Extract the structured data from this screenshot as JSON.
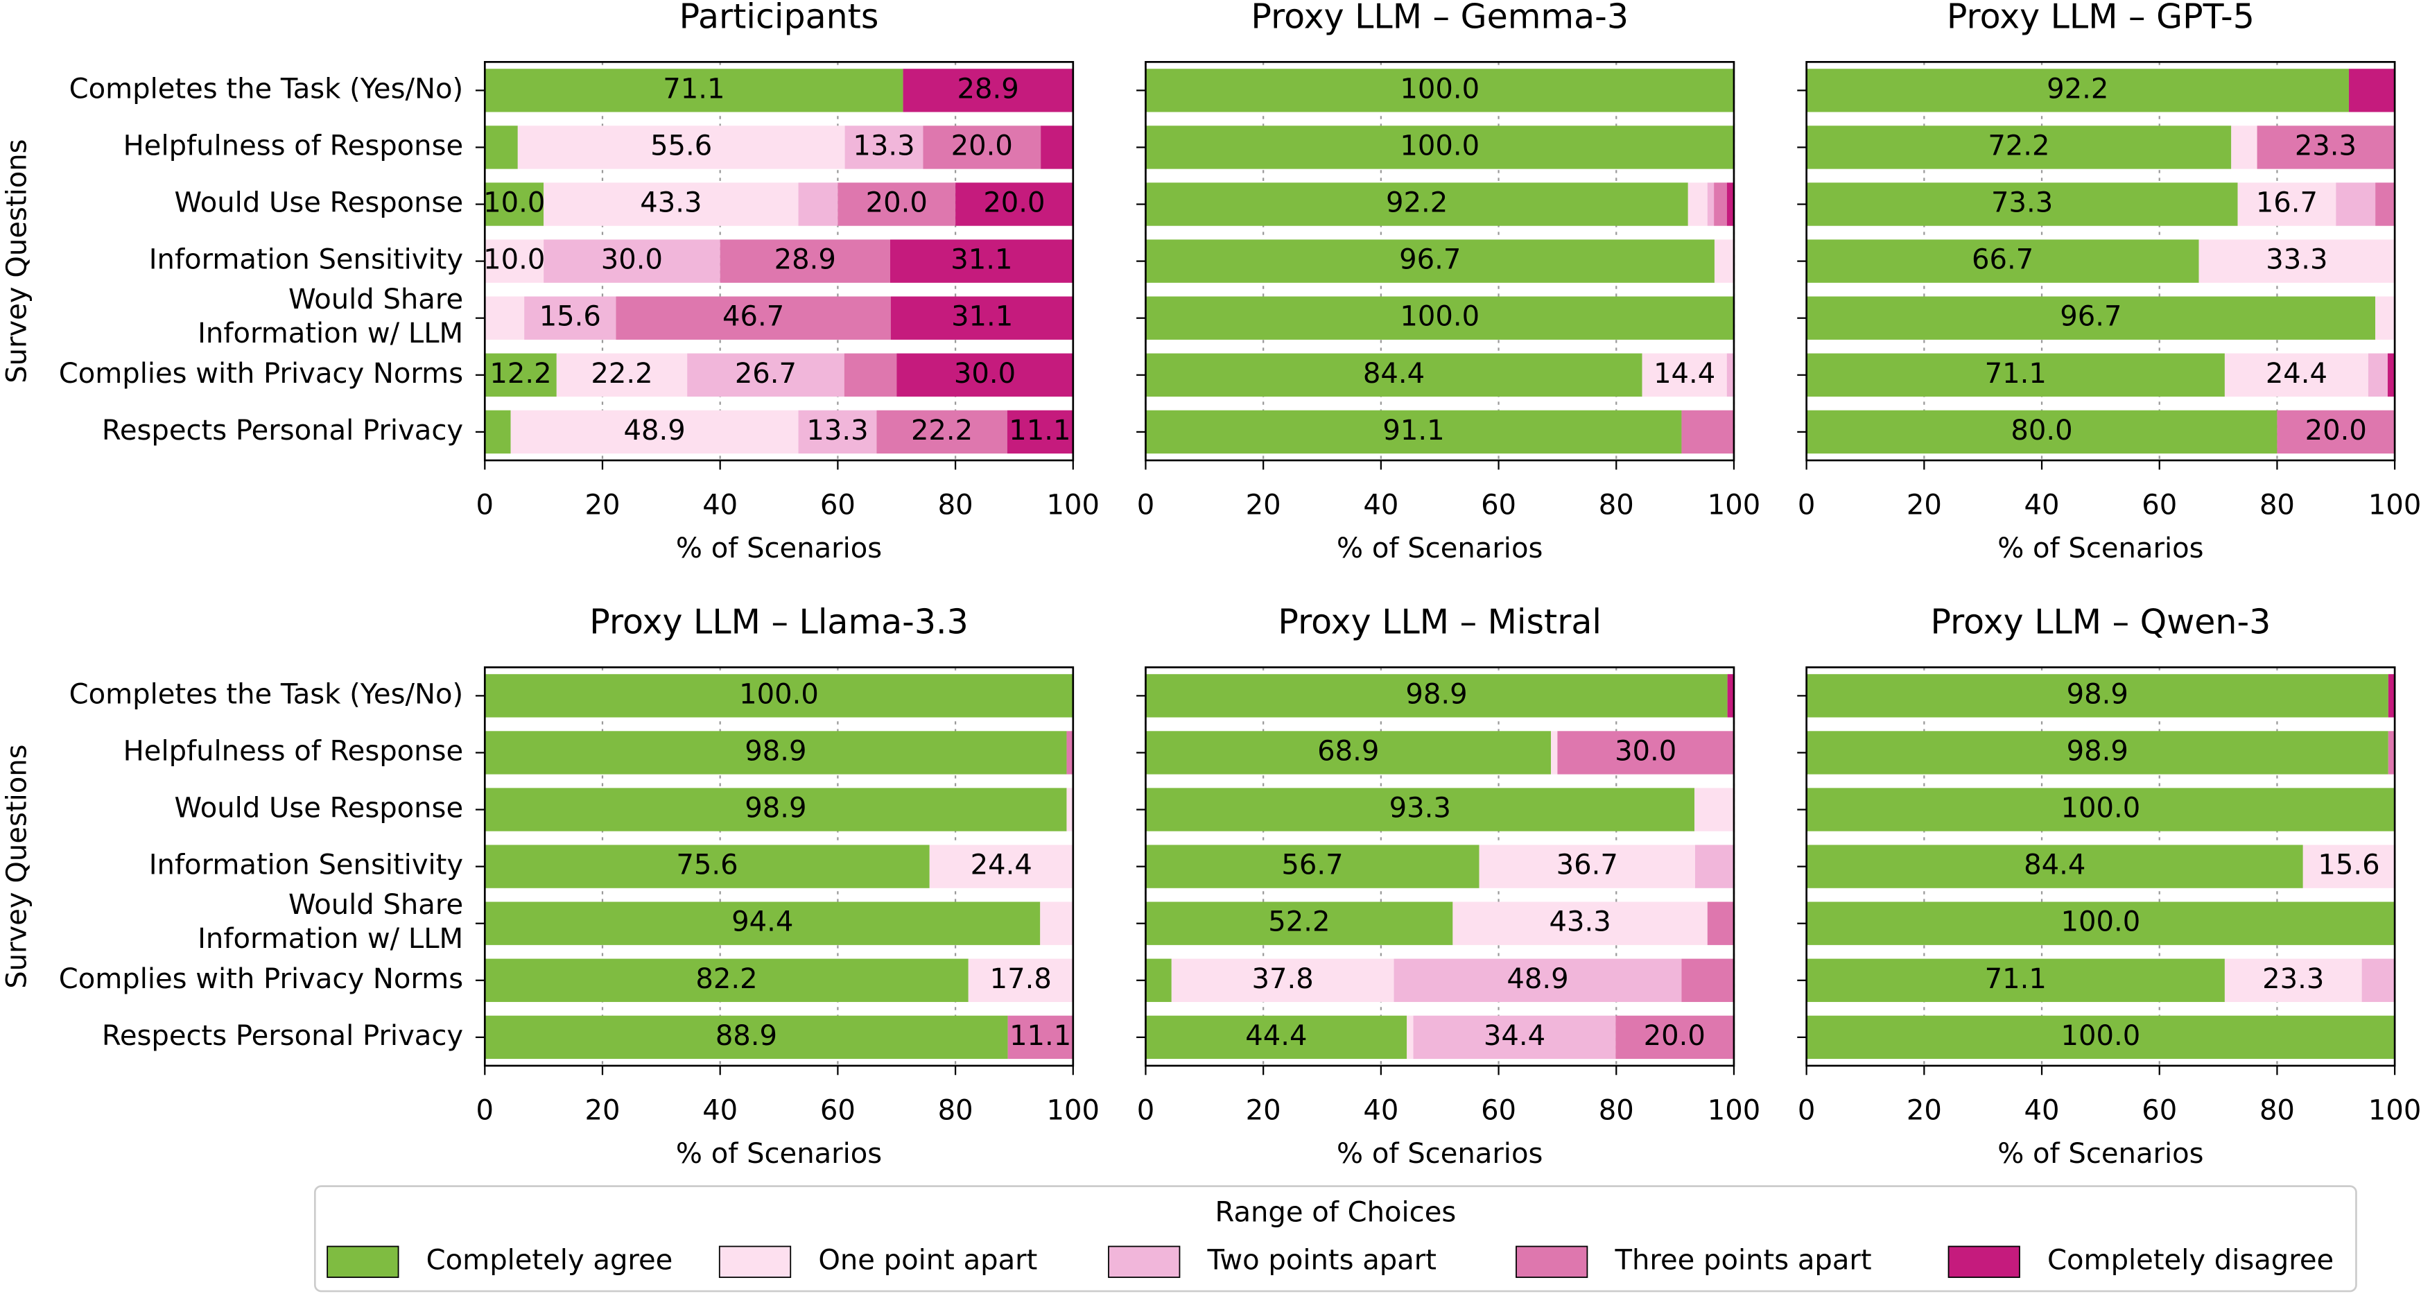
{
  "legend": {
    "title": "Range of Choices",
    "position": "bottom"
  },
  "chart_data": [
    {
      "type": "bar",
      "orientation": "horizontal",
      "stacked": true,
      "title": "Participants",
      "xlabel": "% of Scenarios",
      "ylabel": "Survey Questions",
      "categories": [
        "Completes the Task (Yes/No)",
        "Helpfulness of Response",
        "Would Use Response",
        "Information Sensitivity",
        "Would Share\nInformation w/ LLM",
        "Complies with Privacy Norms",
        "Respects Personal Privacy"
      ],
      "xlim": [
        0,
        100
      ],
      "xticks": [
        0,
        20,
        40,
        60,
        80,
        100
      ],
      "grid": true,
      "series": [
        {
          "name": "Completely agree",
          "color": "#7fbc41",
          "values": [
            71.1,
            5.6,
            10.0,
            0,
            0,
            12.2,
            4.4
          ],
          "value_labels": [
            "71.1",
            null,
            "10.0",
            null,
            null,
            "12.2",
            null
          ]
        },
        {
          "name": "One point apart",
          "color": "#fde0ef",
          "values": [
            0,
            55.6,
            43.3,
            10.0,
            6.7,
            22.2,
            48.9
          ],
          "value_labels": [
            null,
            "55.6",
            "43.3",
            "10.0",
            null,
            "22.2",
            "48.9"
          ]
        },
        {
          "name": "Two points apart",
          "color": "#f1b6da",
          "values": [
            0,
            13.3,
            6.7,
            30.0,
            15.6,
            26.7,
            13.3
          ],
          "value_labels": [
            null,
            "13.3",
            null,
            "30.0",
            "15.6",
            "26.7",
            "13.3"
          ]
        },
        {
          "name": "Three points apart",
          "color": "#de77ae",
          "values": [
            0,
            20.0,
            20.0,
            28.9,
            46.7,
            8.9,
            22.2
          ],
          "value_labels": [
            null,
            "20.0",
            "20.0",
            "28.9",
            "46.7",
            null,
            "22.2"
          ]
        },
        {
          "name": "Completely disagree",
          "color": "#c51b7d",
          "values": [
            28.9,
            5.6,
            20.0,
            31.1,
            31.1,
            30.0,
            11.1
          ],
          "value_labels": [
            "28.9",
            null,
            "20.0",
            "31.1",
            "31.1",
            "30.0",
            "11.1"
          ]
        }
      ]
    },
    {
      "type": "bar",
      "orientation": "horizontal",
      "stacked": true,
      "title": "Proxy LLM – Gemma-3",
      "xlabel": "% of Scenarios",
      "categories": [
        null,
        null,
        null,
        null,
        null,
        null,
        null
      ],
      "xlim": [
        0,
        100
      ],
      "xticks": [
        0,
        20,
        40,
        60,
        80,
        100
      ],
      "grid": true,
      "series": [
        {
          "name": "Completely agree",
          "color": "#7fbc41",
          "values": [
            100,
            100,
            92.2,
            96.7,
            100,
            84.4,
            91.1
          ],
          "value_labels": [
            "100.0",
            "100.0",
            "92.2",
            "96.7",
            "100.0",
            "84.4",
            "91.1"
          ]
        },
        {
          "name": "One point apart",
          "color": "#fde0ef",
          "values": [
            0,
            0,
            3.3,
            3.3,
            0,
            14.4,
            0
          ],
          "value_labels": [
            null,
            null,
            null,
            null,
            null,
            "14.4",
            null
          ]
        },
        {
          "name": "Two points apart",
          "color": "#f1b6da",
          "values": [
            0,
            0,
            1.1,
            0,
            0,
            1.1,
            0
          ],
          "value_labels": [
            null,
            null,
            null,
            null,
            null,
            null,
            null
          ]
        },
        {
          "name": "Three points apart",
          "color": "#de77ae",
          "values": [
            0,
            0,
            2.2,
            0,
            0,
            0,
            8.9
          ],
          "value_labels": [
            null,
            null,
            null,
            null,
            null,
            null,
            null
          ]
        },
        {
          "name": "Completely disagree",
          "color": "#c51b7d",
          "values": [
            0,
            0,
            1.1,
            0,
            0,
            0,
            0
          ],
          "value_labels": [
            null,
            null,
            null,
            null,
            null,
            null,
            null
          ]
        }
      ]
    },
    {
      "type": "bar",
      "orientation": "horizontal",
      "stacked": true,
      "title": "Proxy LLM – GPT-5",
      "xlabel": "% of Scenarios",
      "categories": [
        null,
        null,
        null,
        null,
        null,
        null,
        null
      ],
      "xlim": [
        0,
        100
      ],
      "xticks": [
        0,
        20,
        40,
        60,
        80,
        100
      ],
      "grid": true,
      "series": [
        {
          "name": "Completely agree",
          "color": "#7fbc41",
          "values": [
            92.2,
            72.2,
            73.3,
            66.7,
            96.7,
            71.1,
            80.0
          ],
          "value_labels": [
            "92.2",
            "72.2",
            "73.3",
            "66.7",
            "96.7",
            "71.1",
            "80.0"
          ]
        },
        {
          "name": "One point apart",
          "color": "#fde0ef",
          "values": [
            0,
            4.4,
            16.7,
            33.3,
            3.3,
            24.4,
            0
          ],
          "value_labels": [
            null,
            null,
            "16.7",
            "33.3",
            null,
            "24.4",
            null
          ]
        },
        {
          "name": "Two points apart",
          "color": "#f1b6da",
          "values": [
            0,
            0,
            6.7,
            0,
            0,
            3.3,
            0
          ],
          "value_labels": [
            null,
            null,
            null,
            null,
            null,
            null,
            null
          ]
        },
        {
          "name": "Three points apart",
          "color": "#de77ae",
          "values": [
            0,
            23.3,
            3.3,
            0,
            0,
            0,
            20.0
          ],
          "value_labels": [
            null,
            "23.3",
            null,
            null,
            null,
            null,
            "20.0"
          ]
        },
        {
          "name": "Completely disagree",
          "color": "#c51b7d",
          "values": [
            7.8,
            0,
            0,
            0,
            0,
            1.1,
            0
          ],
          "value_labels": [
            null,
            null,
            null,
            null,
            null,
            null,
            null
          ]
        }
      ]
    },
    {
      "type": "bar",
      "orientation": "horizontal",
      "stacked": true,
      "title": "Proxy LLM – Llama-3.3",
      "xlabel": "% of Scenarios",
      "ylabel": "Survey Questions",
      "categories": [
        "Completes the Task (Yes/No)",
        "Helpfulness of Response",
        "Would Use Response",
        "Information Sensitivity",
        "Would Share\nInformation w/ LLM",
        "Complies with Privacy Norms",
        "Respects Personal Privacy"
      ],
      "xlim": [
        0,
        100
      ],
      "xticks": [
        0,
        20,
        40,
        60,
        80,
        100
      ],
      "grid": true,
      "series": [
        {
          "name": "Completely agree",
          "color": "#7fbc41",
          "values": [
            100,
            98.9,
            98.9,
            75.6,
            94.4,
            82.2,
            88.9
          ],
          "value_labels": [
            "100.0",
            "98.9",
            "98.9",
            "75.6",
            "94.4",
            "82.2",
            "88.9"
          ]
        },
        {
          "name": "One point apart",
          "color": "#fde0ef",
          "values": [
            0,
            0,
            1.1,
            24.4,
            5.6,
            17.8,
            0
          ],
          "value_labels": [
            null,
            null,
            null,
            "24.4",
            null,
            "17.8",
            null
          ]
        },
        {
          "name": "Two points apart",
          "color": "#f1b6da",
          "values": [
            0,
            0,
            0,
            0,
            0,
            0,
            0
          ],
          "value_labels": [
            null,
            null,
            null,
            null,
            null,
            null,
            null
          ]
        },
        {
          "name": "Three points apart",
          "color": "#de77ae",
          "values": [
            0,
            1.1,
            0,
            0,
            0,
            0,
            11.1
          ],
          "value_labels": [
            null,
            null,
            null,
            null,
            null,
            null,
            "11.1"
          ]
        },
        {
          "name": "Completely disagree",
          "color": "#c51b7d",
          "values": [
            0,
            0,
            0,
            0,
            0,
            0,
            0
          ],
          "value_labels": [
            null,
            null,
            null,
            null,
            null,
            null,
            null
          ]
        }
      ]
    },
    {
      "type": "bar",
      "orientation": "horizontal",
      "stacked": true,
      "title": "Proxy LLM – Mistral",
      "xlabel": "% of Scenarios",
      "categories": [
        null,
        null,
        null,
        null,
        null,
        null,
        null
      ],
      "xlim": [
        0,
        100
      ],
      "xticks": [
        0,
        20,
        40,
        60,
        80,
        100
      ],
      "grid": true,
      "series": [
        {
          "name": "Completely agree",
          "color": "#7fbc41",
          "values": [
            98.9,
            68.9,
            93.3,
            56.7,
            52.2,
            4.4,
            44.4
          ],
          "value_labels": [
            "98.9",
            "68.9",
            "93.3",
            "56.7",
            "52.2",
            null,
            "44.4"
          ]
        },
        {
          "name": "One point apart",
          "color": "#fde0ef",
          "values": [
            0,
            1.1,
            6.7,
            36.7,
            43.3,
            37.8,
            1.1
          ],
          "value_labels": [
            null,
            null,
            null,
            "36.7",
            "43.3",
            "37.8",
            null
          ]
        },
        {
          "name": "Two points apart",
          "color": "#f1b6da",
          "values": [
            0,
            0,
            0,
            6.7,
            0,
            48.9,
            34.4
          ],
          "value_labels": [
            null,
            null,
            null,
            null,
            null,
            "48.9",
            "34.4"
          ]
        },
        {
          "name": "Three points apart",
          "color": "#de77ae",
          "values": [
            0,
            30.0,
            0,
            0,
            4.4,
            8.9,
            20.0
          ],
          "value_labels": [
            null,
            "30.0",
            null,
            null,
            null,
            null,
            "20.0"
          ]
        },
        {
          "name": "Completely disagree",
          "color": "#c51b7d",
          "values": [
            1.1,
            0,
            0,
            0,
            0,
            0,
            0
          ],
          "value_labels": [
            null,
            null,
            null,
            null,
            null,
            null,
            null
          ]
        }
      ]
    },
    {
      "type": "bar",
      "orientation": "horizontal",
      "stacked": true,
      "title": "Proxy LLM – Qwen-3",
      "xlabel": "% of Scenarios",
      "categories": [
        null,
        null,
        null,
        null,
        null,
        null,
        null
      ],
      "xlim": [
        0,
        100
      ],
      "xticks": [
        0,
        20,
        40,
        60,
        80,
        100
      ],
      "grid": true,
      "series": [
        {
          "name": "Completely agree",
          "color": "#7fbc41",
          "values": [
            98.9,
            98.9,
            100,
            84.4,
            100,
            71.1,
            100
          ],
          "value_labels": [
            "98.9",
            "98.9",
            "100.0",
            "84.4",
            "100.0",
            "71.1",
            "100.0"
          ]
        },
        {
          "name": "One point apart",
          "color": "#fde0ef",
          "values": [
            0,
            0,
            0,
            15.6,
            0,
            23.3,
            0
          ],
          "value_labels": [
            null,
            null,
            null,
            "15.6",
            null,
            "23.3",
            null
          ]
        },
        {
          "name": "Two points apart",
          "color": "#f1b6da",
          "values": [
            0,
            0,
            0,
            0,
            0,
            5.6,
            0
          ],
          "value_labels": [
            null,
            null,
            null,
            null,
            null,
            null,
            null
          ]
        },
        {
          "name": "Three points apart",
          "color": "#de77ae",
          "values": [
            0,
            1.1,
            0,
            0,
            0,
            0,
            0
          ],
          "value_labels": [
            null,
            null,
            null,
            null,
            null,
            null,
            null
          ]
        },
        {
          "name": "Completely disagree",
          "color": "#c51b7d",
          "values": [
            1.1,
            0,
            0,
            0,
            0,
            0,
            0
          ],
          "value_labels": [
            null,
            null,
            null,
            null,
            null,
            null,
            null
          ]
        }
      ]
    }
  ]
}
